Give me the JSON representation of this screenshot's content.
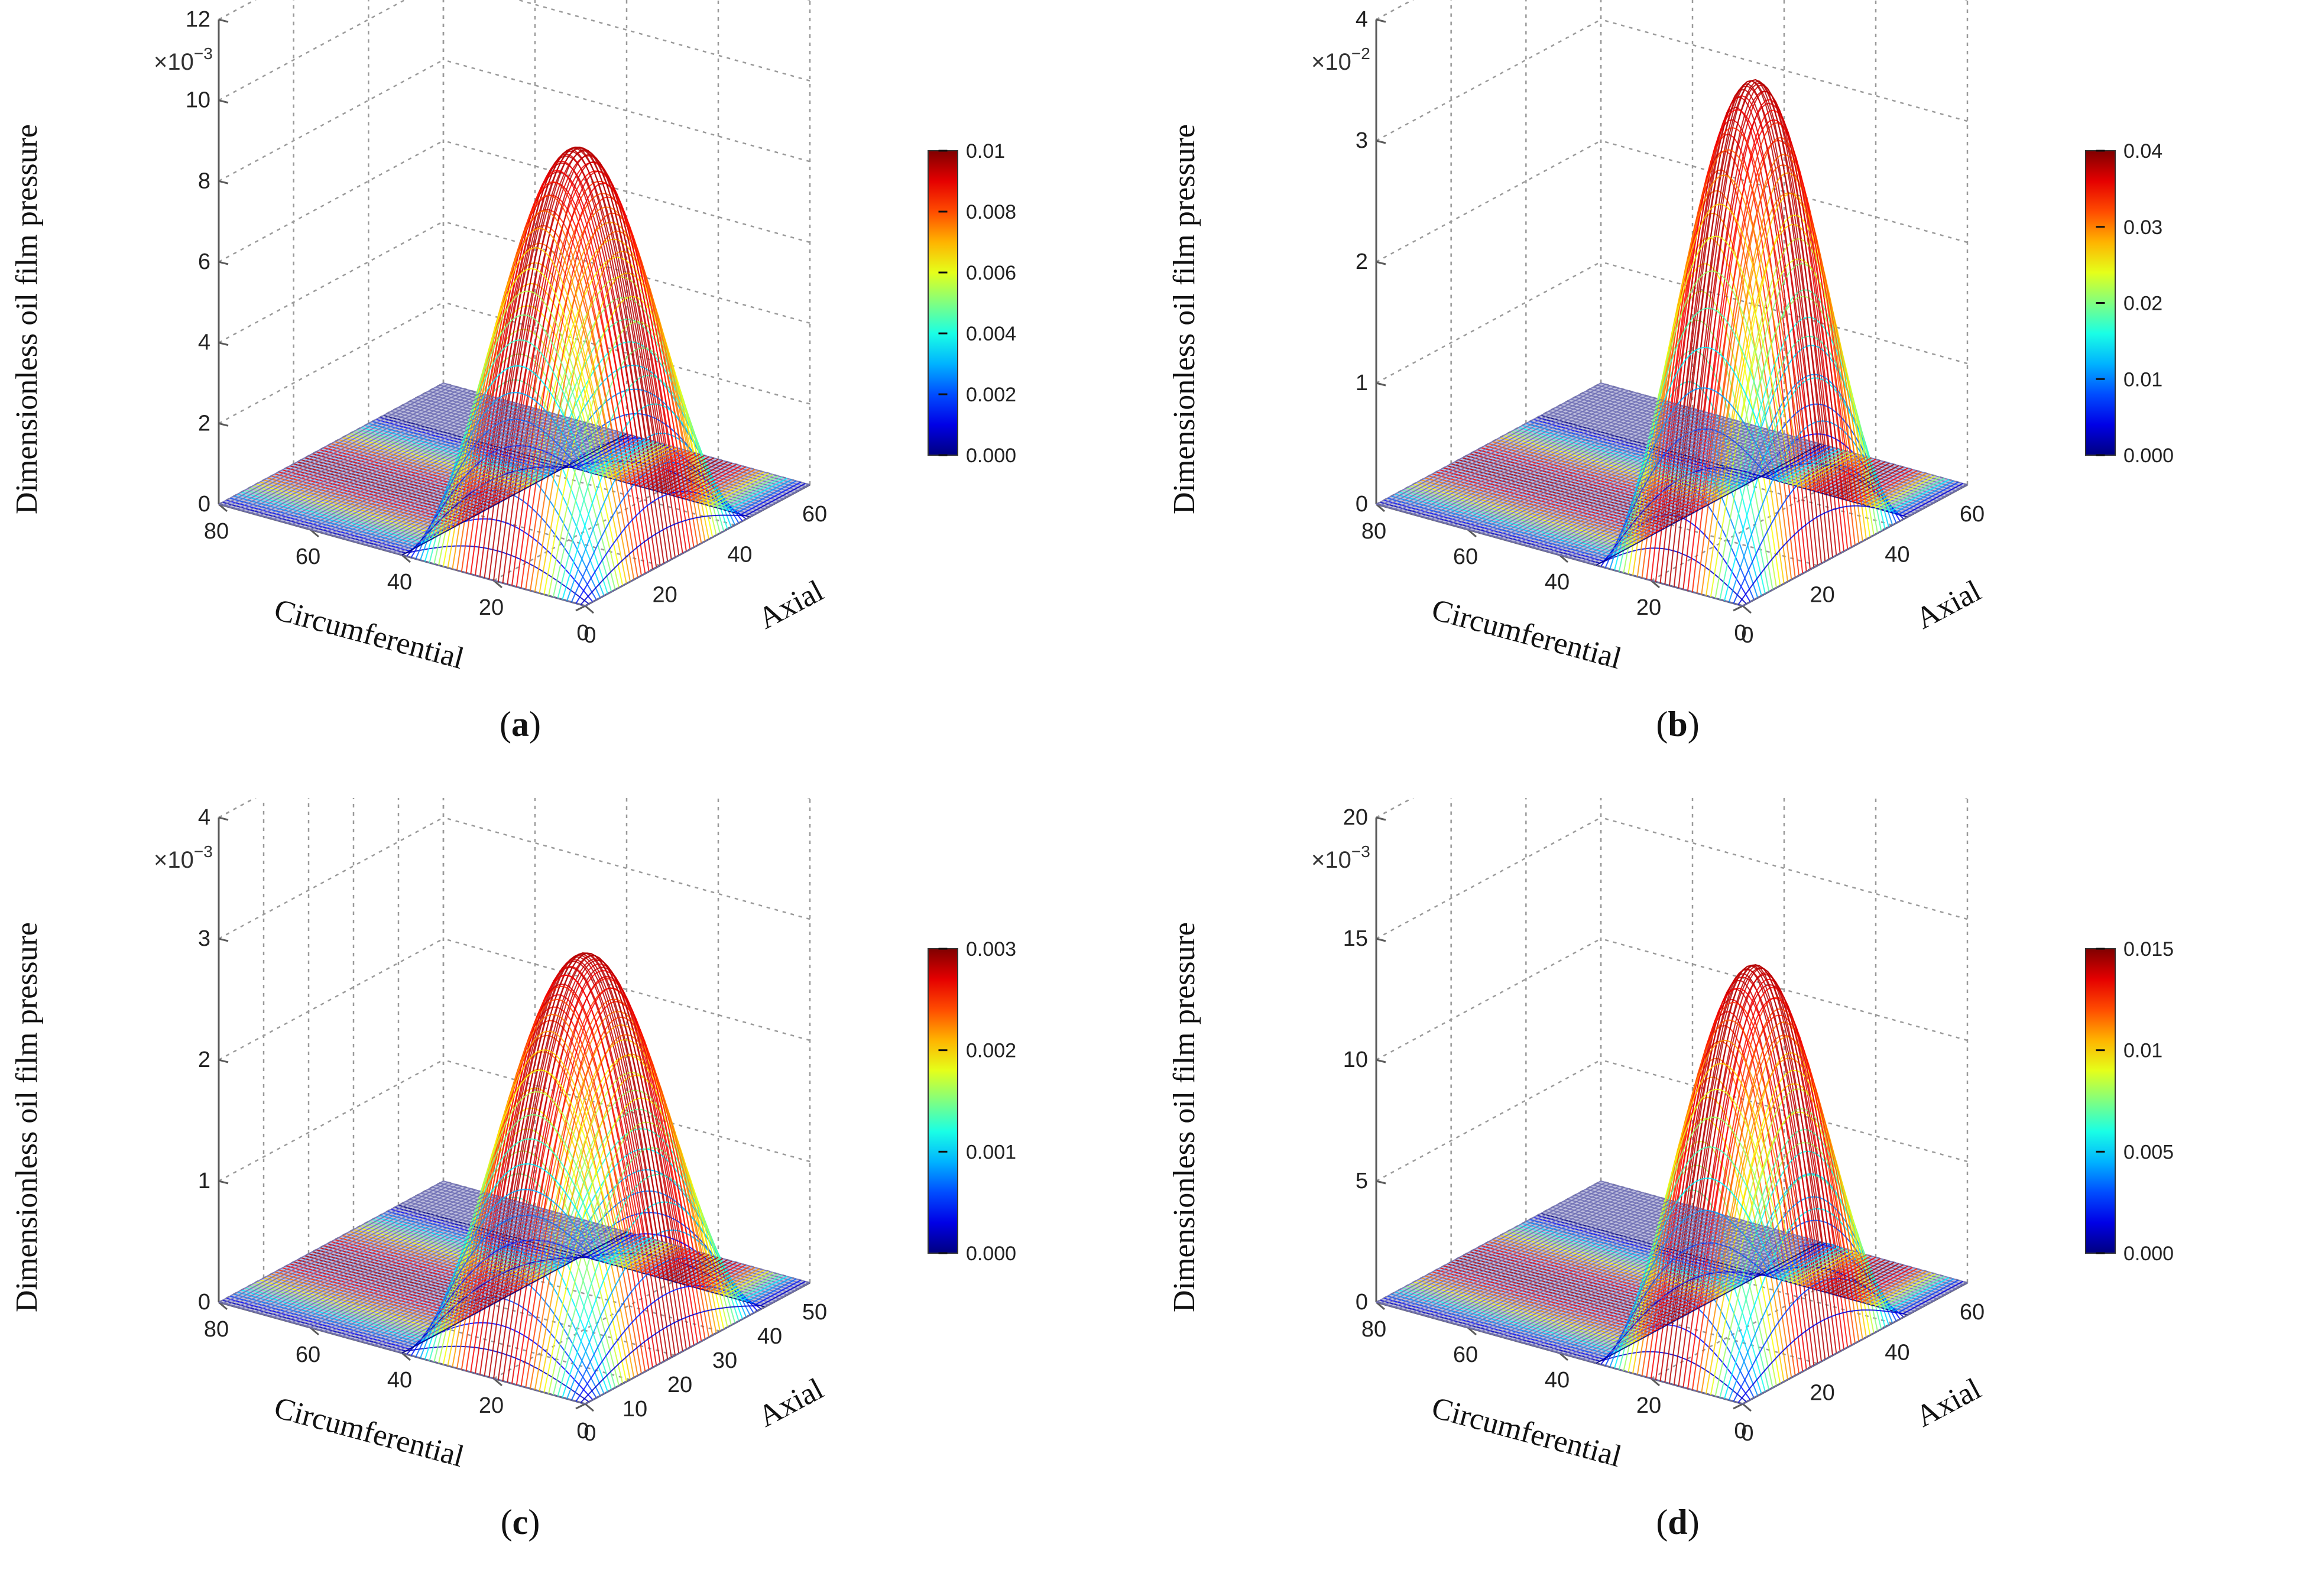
{
  "chart_data": [
    {
      "type": "surface3d",
      "panel_label_open": "(",
      "panel_label_letter": "a",
      "panel_label_close": ")",
      "zlabel": "Dimensionless oil film pressure",
      "xlabel": "Circumferential",
      "ylabel": "Axial",
      "z_multiplier_base": "×10",
      "z_multiplier_exp": "−3",
      "x_ticks": [
        "0",
        "20",
        "40",
        "60",
        "80"
      ],
      "y_ticks": [
        "0",
        "20",
        "40",
        "60"
      ],
      "z_ticks": [
        "0",
        "2",
        "4",
        "6",
        "8",
        "10",
        "12"
      ],
      "xlim": [
        0,
        80
      ],
      "ylim": [
        0,
        60
      ],
      "zlim": [
        0,
        12
      ],
      "peak_z": 9.6,
      "active_x_range": [
        0,
        40
      ],
      "active_y_range": [
        0,
        44
      ],
      "colorbar_ticks": [
        "0.000",
        "0.002",
        "0.004",
        "0.006",
        "0.008",
        "0.01"
      ],
      "colorbar_range": [
        0,
        0.01
      ]
    },
    {
      "type": "surface3d",
      "panel_label_open": "(",
      "panel_label_letter": "b",
      "panel_label_close": ")",
      "zlabel": "Dimensionless oil film pressure",
      "xlabel": "Circumferential",
      "ylabel": "Axial",
      "z_multiplier_base": "×10",
      "z_multiplier_exp": "−2",
      "x_ticks": [
        "0",
        "20",
        "40",
        "60",
        "80"
      ],
      "y_ticks": [
        "0",
        "20",
        "40",
        "60"
      ],
      "z_ticks": [
        "0",
        "1",
        "2",
        "3",
        "4"
      ],
      "xlim": [
        0,
        80
      ],
      "ylim": [
        0,
        60
      ],
      "zlim": [
        0,
        4
      ],
      "peak_z": 3.8,
      "active_x_range": [
        0,
        32
      ],
      "active_y_range": [
        0,
        44
      ],
      "colorbar_ticks": [
        "0.000",
        "0.01",
        "0.02",
        "0.03",
        "0.04"
      ],
      "colorbar_range": [
        0,
        0.04
      ]
    },
    {
      "type": "surface3d",
      "panel_label_open": "(",
      "panel_label_letter": "c",
      "panel_label_close": ")",
      "zlabel": "Dimensionless oil film pressure",
      "xlabel": "Circumferential",
      "ylabel": "Axial",
      "z_multiplier_base": "×10",
      "z_multiplier_exp": "−3",
      "x_ticks": [
        "0",
        "20",
        "40",
        "60",
        "80"
      ],
      "y_ticks": [
        "0",
        "10",
        "20",
        "30",
        "40",
        "50"
      ],
      "z_ticks": [
        "0",
        "1",
        "2",
        "3",
        "4"
      ],
      "xlim": [
        0,
        80
      ],
      "ylim": [
        0,
        50
      ],
      "zlim": [
        0,
        4
      ],
      "peak_z": 3.1,
      "active_x_range": [
        0,
        40
      ],
      "active_y_range": [
        0,
        40
      ],
      "colorbar_ticks": [
        "0.000",
        "0.001",
        "0.002",
        "0.003"
      ],
      "colorbar_range": [
        0,
        0.003
      ]
    },
    {
      "type": "surface3d",
      "panel_label_open": "(",
      "panel_label_letter": "d",
      "panel_label_close": ")",
      "zlabel": "Dimensionless oil film pressure",
      "xlabel": "Circumferential",
      "ylabel": "Axial",
      "z_multiplier_base": "×10",
      "z_multiplier_exp": "−3",
      "x_ticks": [
        "0",
        "20",
        "40",
        "60",
        "80"
      ],
      "y_ticks": [
        "0",
        "20",
        "40",
        "60"
      ],
      "z_ticks": [
        "0",
        "5",
        "10",
        "15",
        "20"
      ],
      "xlim": [
        0,
        80
      ],
      "ylim": [
        0,
        60
      ],
      "zlim": [
        0,
        20
      ],
      "peak_z": 15.4,
      "active_x_range": [
        0,
        32
      ],
      "active_y_range": [
        0,
        44
      ],
      "colorbar_ticks": [
        "0.000",
        "0.005",
        "0.01",
        "0.015"
      ],
      "colorbar_range": [
        0,
        0.015
      ]
    }
  ],
  "colors": {
    "flat_surface": "#6e6eb4",
    "grid": "#9a9a9a",
    "axis": "#5a5a5a"
  }
}
